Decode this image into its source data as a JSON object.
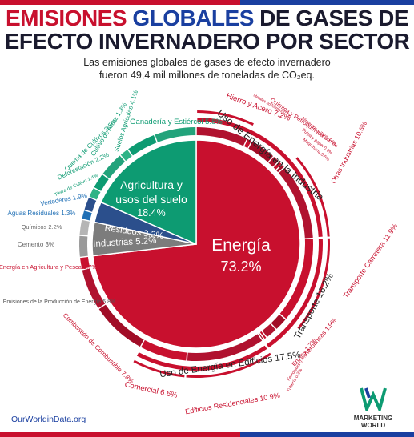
{
  "title": {
    "line1_red": "EMISIONES",
    "line1_blue": "GLOBALES",
    "line1_dark": "DE GASES DE",
    "line2": "EFECTO INVERNADERO POR SECTOR"
  },
  "subtitle": {
    "line1": "Las emisiones globales de gases de efecto invernadero",
    "line2": "fueron 49,4 mil millones de toneladas de CO₂eq."
  },
  "source": "OurWorldinData.org",
  "logo": {
    "line1": "MARKETING",
    "line2": "WORLD"
  },
  "colors": {
    "energy": "#c8102e",
    "agriculture": "#0d9b72",
    "waste": "#2b4f8c",
    "industry": "#7c7c7c",
    "accent_blue": "#1a3fa0"
  },
  "chart_data": {
    "type": "pie",
    "title": "",
    "sectors": [
      {
        "name": "Energía",
        "value": 73.2,
        "label": "Energía",
        "pct": "73.2%"
      },
      {
        "name": "Agricultura y usos del suelo",
        "value": 18.4,
        "label": "Agricultura y usos del suelo",
        "pct": "18.4%"
      },
      {
        "name": "Residuos",
        "value": 3.2,
        "label": "Residuos 3.2%"
      },
      {
        "name": "Industrias",
        "value": 5.2,
        "label": "Industrias 5.2%"
      }
    ],
    "subsectors": [
      {
        "label": "Hierro y Acero",
        "value": 7.2,
        "pct": "7.2%",
        "sector": "Energía"
      },
      {
        "label": "Metales no férreos",
        "value": 0.7,
        "pct": "0.7%",
        "sector": "Energía"
      },
      {
        "label": "Química y Petroquímica",
        "value": 3.6,
        "pct": "3.6%",
        "sector": "Energía"
      },
      {
        "label": "Alimentos y Tabaco",
        "value": 1.0,
        "pct": "1%",
        "sector": "Energía"
      },
      {
        "label": "Pulpa y papel",
        "value": 0.6,
        "pct": "0.6%",
        "sector": "Energía"
      },
      {
        "label": "Maquinaria",
        "value": 0.5,
        "pct": "0.5%",
        "sector": "Energía"
      },
      {
        "label": "Otras Industrias",
        "value": 10.6,
        "pct": "10.6%",
        "sector": "Energía"
      },
      {
        "label": "Transporte Carretera",
        "value": 11.9,
        "pct": "11.9%",
        "sector": "Energía"
      },
      {
        "label": "Aerolíneas",
        "value": 1.9,
        "pct": "1.9%",
        "sector": "Energía"
      },
      {
        "label": "Envíos",
        "value": 1.7,
        "pct": "1.7%",
        "sector": "Energía"
      },
      {
        "label": "Ferrocarril",
        "value": 0.4,
        "pct": "0.4%",
        "sector": "Energía"
      },
      {
        "label": "Tubería",
        "value": 0.3,
        "pct": "0.3%",
        "sector": "Energía"
      },
      {
        "label": "Edificios Residenciales",
        "value": 10.9,
        "pct": "10.9%",
        "sector": "Energía"
      },
      {
        "label": "Comercial",
        "value": 6.6,
        "pct": "6.6%",
        "sector": "Energía"
      },
      {
        "label": "Combustión de Combustible",
        "value": 7.8,
        "pct": "7.8%",
        "sector": "Energía"
      },
      {
        "label": "Emisiones de la Producción de Energía",
        "value": 5.8,
        "pct": "5.8%",
        "sector": "Energía"
      },
      {
        "label": "Energía en Agricultura y Pesca",
        "value": 1.7,
        "pct": "1.7%",
        "sector": "Energía"
      },
      {
        "label": "Cemento",
        "value": 3.0,
        "pct": "3%",
        "sector": "Industrias"
      },
      {
        "label": "Químicos",
        "value": 2.2,
        "pct": "2.2%",
        "sector": "Industrias"
      },
      {
        "label": "Aguas Residuales",
        "value": 1.3,
        "pct": "1.3%",
        "sector": "Residuos"
      },
      {
        "label": "Vertederos",
        "value": 1.9,
        "pct": "1.9%",
        "sector": "Residuos"
      },
      {
        "label": "Tierra de Cultivo",
        "value": 1.4,
        "pct": "1.4%",
        "sector": "Agricultura y usos del suelo"
      },
      {
        "label": "Deforestación",
        "value": 2.2,
        "pct": "2.2%",
        "sector": "Agricultura y usos del suelo"
      },
      {
        "label": "Quema de Cultivos",
        "value": 3.5,
        "pct": "3.5%",
        "sector": "Agricultura y usos del suelo"
      },
      {
        "label": "Cultivo de Arroz",
        "value": 1.3,
        "pct": "1.3%",
        "sector": "Agricultura y usos del suelo"
      },
      {
        "label": "Suelos Agrícolas",
        "value": 4.1,
        "pct": "4.1%",
        "sector": "Agricultura y usos del suelo"
      },
      {
        "label": "Ganadería y Estiércol",
        "value": 5.8,
        "pct": "5.8%",
        "sector": "Agricultura y usos del suelo"
      }
    ],
    "groups": [
      {
        "label": "Uso de Energía en la Industria",
        "value": 24.2,
        "pct": ""
      },
      {
        "label": "Transporte",
        "value": 16.2,
        "pct": "16.2%"
      },
      {
        "label": "Uso de Energía en Edificios",
        "value": 17.5,
        "pct": "17.5%"
      }
    ]
  }
}
